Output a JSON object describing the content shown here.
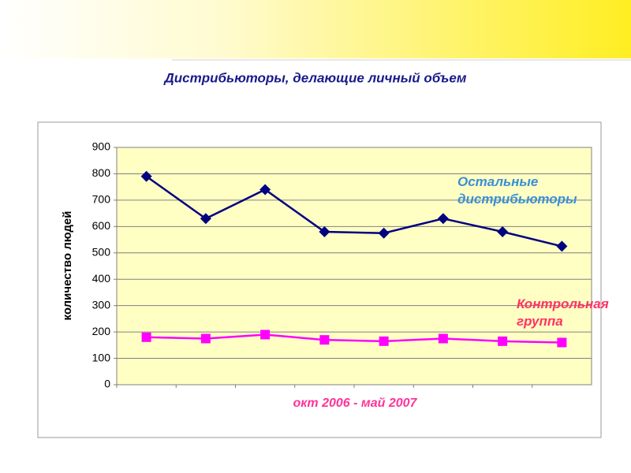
{
  "chart_data": {
    "type": "line",
    "title": "Дистрибьюторы, делающие личный объем",
    "x_label": "окт 2006 - май 2007",
    "y_label": "количество людей",
    "categories": [
      null,
      null,
      null,
      null,
      null,
      null,
      null,
      null
    ],
    "series": [
      {
        "name": "Остальные дистрибьюторы",
        "color": "#000080",
        "marker": "diamond",
        "label_color": "#3a8fd6",
        "values": [
          790,
          630,
          740,
          580,
          575,
          630,
          580,
          525
        ]
      },
      {
        "name": "Контрольная группа",
        "color": "#ff00ff",
        "marker": "square",
        "label_color": "#ff3366",
        "values": [
          180,
          175,
          190,
          170,
          165,
          175,
          165,
          160
        ]
      }
    ],
    "ylim": [
      0,
      900
    ],
    "yticks": [
      0,
      100,
      200,
      300,
      400,
      500,
      600,
      700,
      800,
      900
    ],
    "grid": true
  }
}
